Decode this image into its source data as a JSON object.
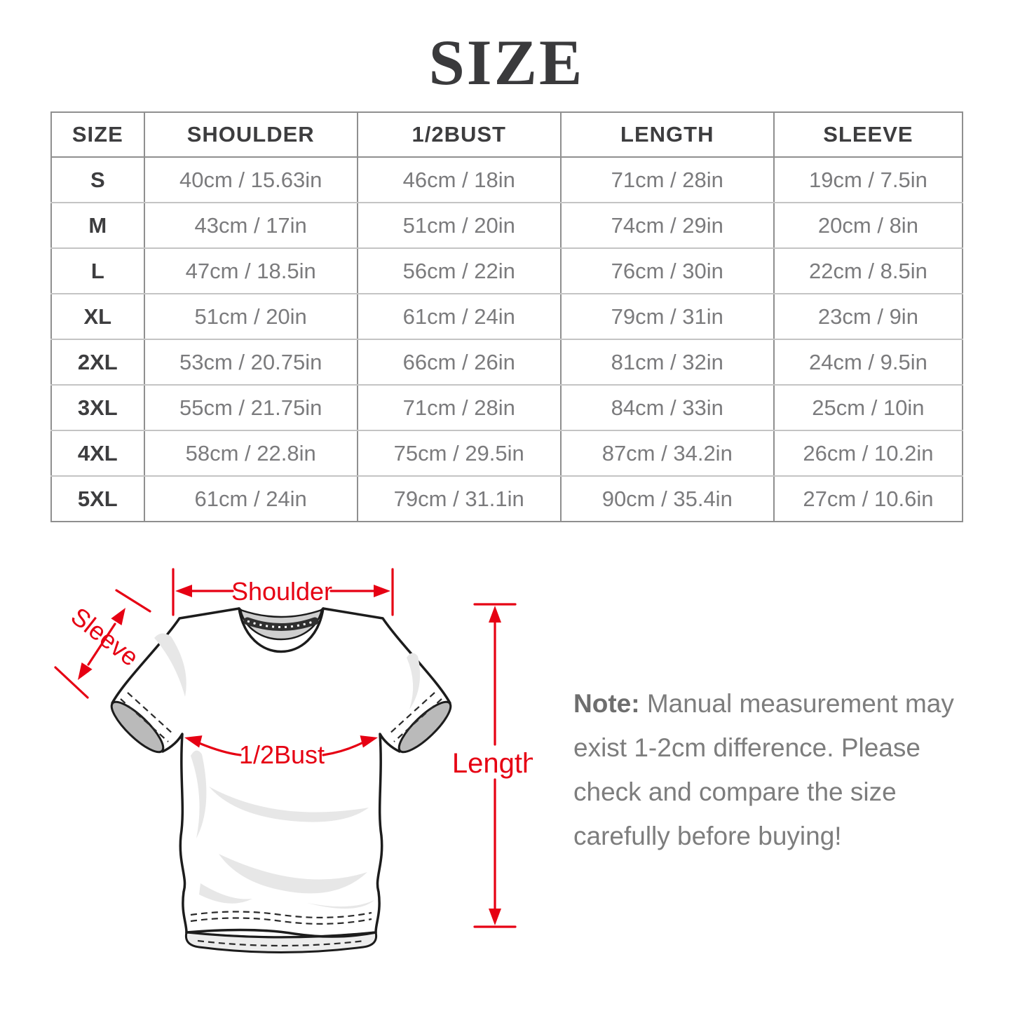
{
  "page": {
    "title": "SIZE"
  },
  "colors": {
    "accent": "#e60013",
    "heading": "#3a3a3c",
    "table_header_text": "#3d3d3f",
    "table_cell_text": "#7b7b7d",
    "table_border_dark": "#8f8f8f",
    "table_border_light": "#c4c4c4",
    "note_text": "#7d7d7d",
    "note_label": "#6e6e6e",
    "shirt_outline": "#1c1c1c",
    "shirt_shade": "#e7e7e7",
    "collar_fill": "#cfcfcf",
    "cuff_fill": "#bababa"
  },
  "table": {
    "headers": [
      "SIZE",
      "SHOULDER",
      "1/2BUST",
      "LENGTH",
      "SLEEVE"
    ],
    "rows": [
      [
        "S",
        "40cm / 15.63in",
        "46cm / 18in",
        "71cm / 28in",
        "19cm / 7.5in"
      ],
      [
        "M",
        "43cm / 17in",
        "51cm / 20in",
        "74cm / 29in",
        "20cm / 8in"
      ],
      [
        "L",
        "47cm / 18.5in",
        "56cm / 22in",
        "76cm / 30in",
        "22cm / 8.5in"
      ],
      [
        "XL",
        "51cm / 20in",
        "61cm / 24in",
        "79cm / 31in",
        "23cm / 9in"
      ],
      [
        "2XL",
        "53cm / 20.75in",
        "66cm / 26in",
        "81cm / 32in",
        "24cm / 9.5in"
      ],
      [
        "3XL",
        "55cm / 21.75in",
        "71cm / 28in",
        "84cm / 33in",
        "25cm / 10in"
      ],
      [
        "4XL",
        "58cm / 22.8in",
        "75cm / 29.5in",
        "87cm / 34.2in",
        "26cm / 10.2in"
      ],
      [
        "5XL",
        "61cm / 24in",
        "79cm / 31.1in",
        "90cm / 35.4in",
        "27cm / 10.6in"
      ]
    ]
  },
  "diagram": {
    "labels": {
      "shoulder": "Shoulder",
      "sleeve": "Sleeve",
      "bust": "1/2Bust",
      "length": "Length"
    }
  },
  "note": {
    "label": "Note:",
    "text": "Manual measurement may exist 1-2cm difference. Please check and compare the size carefully before buying!"
  }
}
